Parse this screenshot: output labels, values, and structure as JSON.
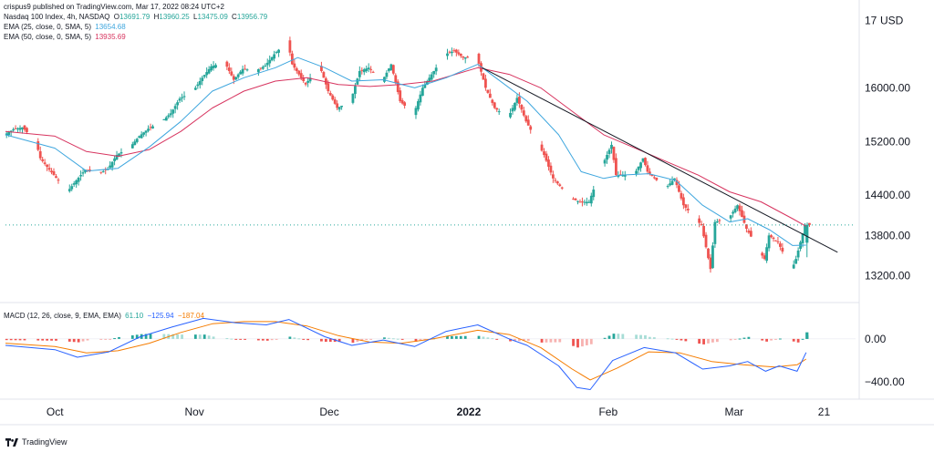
{
  "publisher_line": "crispus9 published on TradingView.com, Mar 17, 2022 08:24 UTC+2",
  "legend": {
    "symbol": "Nasdaq 100 Index, 4h, NASDAQ",
    "open_label": "O",
    "open": "13691.79",
    "high_label": "H",
    "high": "13960.25",
    "low_label": "L",
    "low": "13475.09",
    "close_label": "C",
    "close": "13956.79",
    "ema25_label": "EMA (25, close, 0, SMA, 5)",
    "ema25_value": "13654.68",
    "ema50_label": "EMA (50, close, 0, SMA, 5)",
    "ema50_value": "13935.69"
  },
  "macd_legend": {
    "label": "MACD (12, 26, close, 9, EMA, EMA)",
    "hist": "61.10",
    "macd": "−125.94",
    "signal": "−187.04"
  },
  "currency": "USD",
  "brand": "TradingView",
  "colors": {
    "up": "#26a69a",
    "down": "#ef5350",
    "ema25": "#3ea6de",
    "ema50": "#d7345f",
    "macd": "#2962ff",
    "signal": "#f57c00",
    "hist_up_strong": "#26a69a",
    "hist_up_weak": "#a7ddd6",
    "hist_down_strong": "#ef5350",
    "hist_down_weak": "#f7b2b0",
    "trendline": "#131722",
    "last_price_line": "#26a69a"
  },
  "chart_data": [
    {
      "type": "candlestick",
      "title": "Nasdaq 100 Index, 4h, NASDAQ",
      "ylim": [
        12800,
        17200
      ],
      "y_ticks": [
        "17",
        "16000.00",
        "15200.00",
        "14400.00",
        "13800.00",
        "13200.00"
      ],
      "x_ticks": [
        "Oct",
        "Nov",
        "Dec",
        "2022",
        "Feb",
        "Mar",
        "21"
      ],
      "x_tick_dates": [
        "2021-10-01",
        "2021-11-01",
        "2021-12-01",
        "2022-01-01",
        "2022-02-01",
        "2022-03-01",
        "2022-03-21"
      ],
      "x_range": [
        "2021-09-20",
        "2022-03-28"
      ],
      "price_path": [
        [
          "2021-09-20",
          15300
        ],
        [
          "2021-09-22",
          15380
        ],
        [
          "2021-09-24",
          15410
        ],
        [
          "2021-09-27",
          15200
        ],
        [
          "2021-09-28",
          14950
        ],
        [
          "2021-09-30",
          14780
        ],
        [
          "2021-10-01",
          14700
        ],
        [
          "2021-10-04",
          14450
        ],
        [
          "2021-10-06",
          14620
        ],
        [
          "2021-10-08",
          14780
        ],
        [
          "2021-10-11",
          14720
        ],
        [
          "2021-10-13",
          14790
        ],
        [
          "2021-10-15",
          15000
        ],
        [
          "2021-10-18",
          15120
        ],
        [
          "2021-10-20",
          15280
        ],
        [
          "2021-10-22",
          15390
        ],
        [
          "2021-10-25",
          15500
        ],
        [
          "2021-10-27",
          15620
        ],
        [
          "2021-10-29",
          15840
        ],
        [
          "2021-11-01",
          15950
        ],
        [
          "2021-11-03",
          16150
        ],
        [
          "2021-11-05",
          16320
        ],
        [
          "2021-11-08",
          16380
        ],
        [
          "2021-11-10",
          16120
        ],
        [
          "2021-11-12",
          16280
        ],
        [
          "2021-11-15",
          16260
        ],
        [
          "2021-11-17",
          16330
        ],
        [
          "2021-11-19",
          16500
        ],
        [
          "2021-11-22",
          16700
        ],
        [
          "2021-11-23",
          16350
        ],
        [
          "2021-11-26",
          16050
        ],
        [
          "2021-11-29",
          16350
        ],
        [
          "2021-11-30",
          16150
        ],
        [
          "2021-12-01",
          15950
        ],
        [
          "2021-12-03",
          15700
        ],
        [
          "2021-12-06",
          15800
        ],
        [
          "2021-12-08",
          16250
        ],
        [
          "2021-12-10",
          16300
        ],
        [
          "2021-12-13",
          16100
        ],
        [
          "2021-12-15",
          16350
        ],
        [
          "2021-12-17",
          15800
        ],
        [
          "2021-12-20",
          15600
        ],
        [
          "2021-12-22",
          16000
        ],
        [
          "2021-12-24",
          16200
        ],
        [
          "2021-12-27",
          16500
        ],
        [
          "2021-12-29",
          16550
        ],
        [
          "2021-12-31",
          16450
        ],
        [
          "2022-01-03",
          16480
        ],
        [
          "2022-01-05",
          16000
        ],
        [
          "2022-01-07",
          15700
        ],
        [
          "2022-01-10",
          15550
        ],
        [
          "2022-01-12",
          15850
        ],
        [
          "2022-01-14",
          15500
        ],
        [
          "2022-01-18",
          15000
        ],
        [
          "2022-01-20",
          14650
        ],
        [
          "2022-01-24",
          14350
        ],
        [
          "2022-01-26",
          14300
        ],
        [
          "2022-01-28",
          14300
        ],
        [
          "2022-01-31",
          14850
        ],
        [
          "2022-02-02",
          15150
        ],
        [
          "2022-02-03",
          14700
        ],
        [
          "2022-02-07",
          14700
        ],
        [
          "2022-02-09",
          14950
        ],
        [
          "2022-02-10",
          14750
        ],
        [
          "2022-02-14",
          14500
        ],
        [
          "2022-02-16",
          14650
        ],
        [
          "2022-02-18",
          14250
        ],
        [
          "2022-02-22",
          13950
        ],
        [
          "2022-02-24",
          13300
        ],
        [
          "2022-02-25",
          14000
        ],
        [
          "2022-02-28",
          14050
        ],
        [
          "2022-03-02",
          14250
        ],
        [
          "2022-03-04",
          13900
        ],
        [
          "2022-03-07",
          13550
        ],
        [
          "2022-03-08",
          13450
        ],
        [
          "2022-03-09",
          13800
        ],
        [
          "2022-03-11",
          13700
        ],
        [
          "2022-03-14",
          13280
        ],
        [
          "2022-03-15",
          13450
        ],
        [
          "2022-03-16",
          13700
        ],
        [
          "2022-03-17",
          13957
        ]
      ],
      "ema25_path": [
        [
          "2021-09-20",
          15300
        ],
        [
          "2021-10-01",
          15100
        ],
        [
          "2021-10-08",
          14760
        ],
        [
          "2021-10-15",
          14800
        ],
        [
          "2021-10-22",
          15120
        ],
        [
          "2021-10-29",
          15500
        ],
        [
          "2021-11-05",
          15950
        ],
        [
          "2021-11-12",
          16150
        ],
        [
          "2021-11-19",
          16300
        ],
        [
          "2021-11-24",
          16450
        ],
        [
          "2021-11-30",
          16300
        ],
        [
          "2021-12-06",
          16100
        ],
        [
          "2021-12-13",
          16120
        ],
        [
          "2021-12-20",
          16000
        ],
        [
          "2021-12-27",
          16150
        ],
        [
          "2022-01-03",
          16350
        ],
        [
          "2022-01-07",
          16150
        ],
        [
          "2022-01-14",
          15800
        ],
        [
          "2022-01-21",
          15300
        ],
        [
          "2022-01-26",
          14750
        ],
        [
          "2022-01-31",
          14650
        ],
        [
          "2022-02-04",
          14700
        ],
        [
          "2022-02-10",
          14720
        ],
        [
          "2022-02-16",
          14620
        ],
        [
          "2022-02-22",
          14250
        ],
        [
          "2022-02-28",
          14000
        ],
        [
          "2022-03-04",
          14050
        ],
        [
          "2022-03-09",
          13880
        ],
        [
          "2022-03-14",
          13650
        ],
        [
          "2022-03-17",
          13655
        ]
      ],
      "ema50_path": [
        [
          "2021-09-20",
          15350
        ],
        [
          "2021-10-01",
          15280
        ],
        [
          "2021-10-08",
          15050
        ],
        [
          "2021-10-15",
          14980
        ],
        [
          "2021-10-22",
          15080
        ],
        [
          "2021-10-29",
          15350
        ],
        [
          "2021-11-05",
          15700
        ],
        [
          "2021-11-12",
          15950
        ],
        [
          "2021-11-19",
          16100
        ],
        [
          "2021-11-26",
          16150
        ],
        [
          "2021-12-03",
          16050
        ],
        [
          "2021-12-10",
          16020
        ],
        [
          "2021-12-17",
          16050
        ],
        [
          "2021-12-24",
          16100
        ],
        [
          "2022-01-03",
          16300
        ],
        [
          "2022-01-10",
          16200
        ],
        [
          "2022-01-17",
          16000
        ],
        [
          "2022-01-24",
          15650
        ],
        [
          "2022-01-31",
          15300
        ],
        [
          "2022-02-07",
          15100
        ],
        [
          "2022-02-14",
          14900
        ],
        [
          "2022-02-21",
          14700
        ],
        [
          "2022-02-28",
          14450
        ],
        [
          "2022-03-07",
          14300
        ],
        [
          "2022-03-14",
          14050
        ],
        [
          "2022-03-17",
          13936
        ]
      ],
      "trendline": [
        [
          "2022-01-04",
          16300
        ],
        [
          "2022-03-24",
          13550
        ]
      ],
      "last_price": 13956.79
    },
    {
      "type": "macd",
      "title": "MACD (12, 26, close, 9, EMA, EMA)",
      "ylim": [
        -550,
        320
      ],
      "y_ticks": [
        "0.00",
        "−400.00"
      ],
      "macd_path": [
        [
          "2021-09-20",
          -60
        ],
        [
          "2021-10-01",
          -100
        ],
        [
          "2021-10-06",
          -170
        ],
        [
          "2021-10-13",
          -120
        ],
        [
          "2021-10-20",
          20
        ],
        [
          "2021-10-27",
          110
        ],
        [
          "2021-11-03",
          190
        ],
        [
          "2021-11-10",
          150
        ],
        [
          "2021-11-17",
          130
        ],
        [
          "2021-11-22",
          180
        ],
        [
          "2021-11-30",
          20
        ],
        [
          "2021-12-06",
          -60
        ],
        [
          "2021-12-13",
          -10
        ],
        [
          "2021-12-20",
          -70
        ],
        [
          "2021-12-27",
          70
        ],
        [
          "2022-01-03",
          130
        ],
        [
          "2022-01-10",
          0
        ],
        [
          "2022-01-14",
          -60
        ],
        [
          "2022-01-21",
          -250
        ],
        [
          "2022-01-25",
          -450
        ],
        [
          "2022-01-28",
          -470
        ],
        [
          "2022-02-02",
          -200
        ],
        [
          "2022-02-09",
          -80
        ],
        [
          "2022-02-16",
          -130
        ],
        [
          "2022-02-22",
          -280
        ],
        [
          "2022-02-28",
          -250
        ],
        [
          "2022-03-04",
          -210
        ],
        [
          "2022-03-08",
          -300
        ],
        [
          "2022-03-11",
          -250
        ],
        [
          "2022-03-15",
          -300
        ],
        [
          "2022-03-17",
          -126
        ]
      ],
      "signal_path": [
        [
          "2021-09-20",
          -40
        ],
        [
          "2021-10-01",
          -70
        ],
        [
          "2021-10-08",
          -130
        ],
        [
          "2021-10-15",
          -110
        ],
        [
          "2021-10-22",
          -40
        ],
        [
          "2021-10-29",
          60
        ],
        [
          "2021-11-05",
          140
        ],
        [
          "2021-11-12",
          160
        ],
        [
          "2021-11-19",
          160
        ],
        [
          "2021-11-26",
          120
        ],
        [
          "2021-12-03",
          30
        ],
        [
          "2021-12-10",
          -30
        ],
        [
          "2021-12-17",
          -40
        ],
        [
          "2021-12-24",
          0
        ],
        [
          "2022-01-03",
          80
        ],
        [
          "2022-01-10",
          40
        ],
        [
          "2022-01-17",
          -80
        ],
        [
          "2022-01-24",
          -280
        ],
        [
          "2022-01-28",
          -380
        ],
        [
          "2022-02-03",
          -270
        ],
        [
          "2022-02-10",
          -120
        ],
        [
          "2022-02-17",
          -130
        ],
        [
          "2022-02-24",
          -210
        ],
        [
          "2022-03-03",
          -240
        ],
        [
          "2022-03-10",
          -260
        ],
        [
          "2022-03-15",
          -240
        ],
        [
          "2022-03-17",
          -187
        ]
      ],
      "hist_last": 61.1
    }
  ]
}
